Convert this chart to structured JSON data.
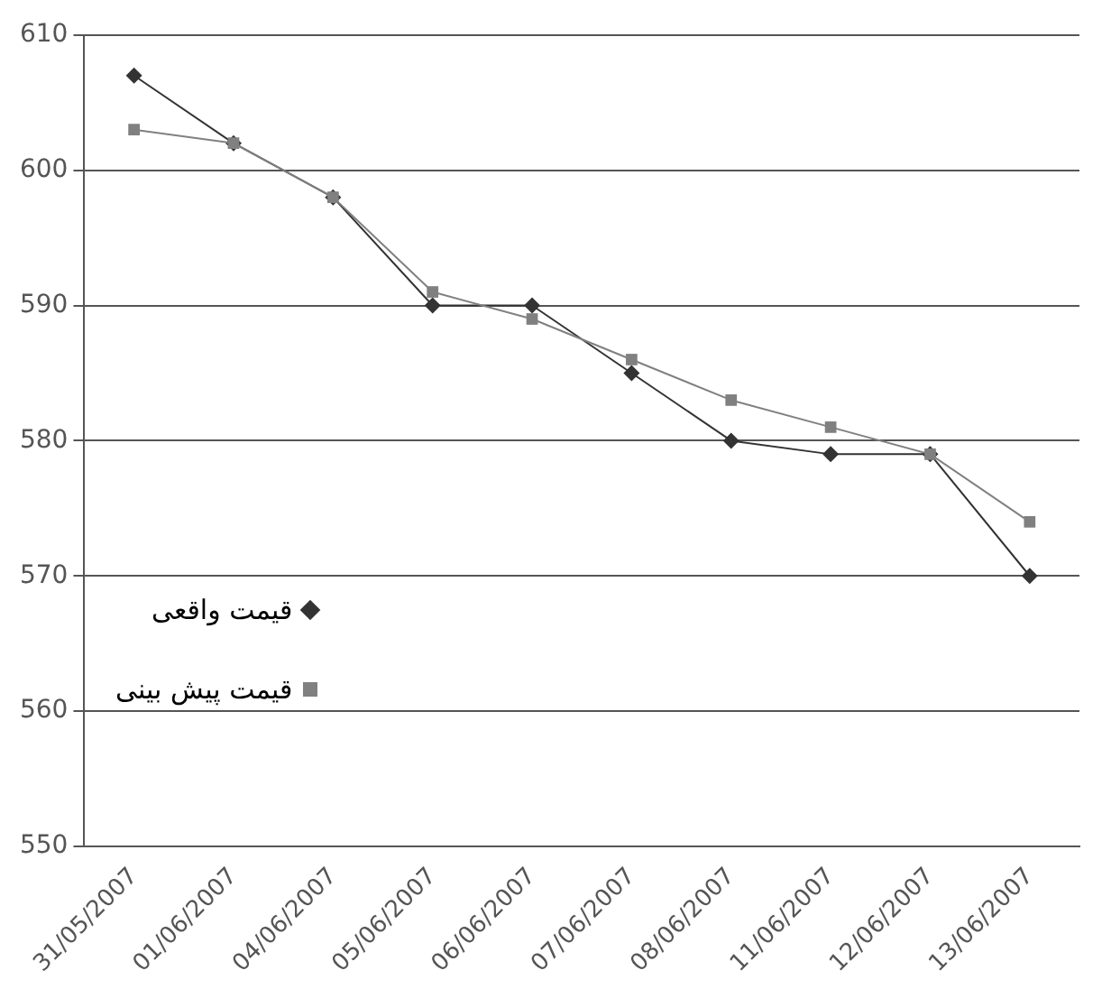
{
  "chart_data": {
    "type": "line",
    "categories": [
      "31/05/2007",
      "01/06/2007",
      "04/06/2007",
      "05/06/2007",
      "06/06/2007",
      "07/06/2007",
      "08/06/2007",
      "11/06/2007",
      "12/06/2007",
      "13/06/2007"
    ],
    "series": [
      {
        "name": "قیمت واقعی",
        "color": "#333333",
        "marker": "diamond",
        "values": [
          607,
          602,
          598,
          590,
          590,
          585,
          580,
          579,
          579,
          570
        ]
      },
      {
        "name": "قیمت پیش بینی",
        "color": "#808080",
        "marker": "square",
        "values": [
          603,
          602,
          598,
          591,
          589,
          586,
          583,
          581,
          579,
          574
        ]
      }
    ],
    "ylim": [
      550,
      610
    ],
    "yticks": [
      550,
      560,
      570,
      580,
      590,
      600,
      610
    ],
    "grid": "y",
    "legend": "left",
    "line_style": "solid"
  }
}
